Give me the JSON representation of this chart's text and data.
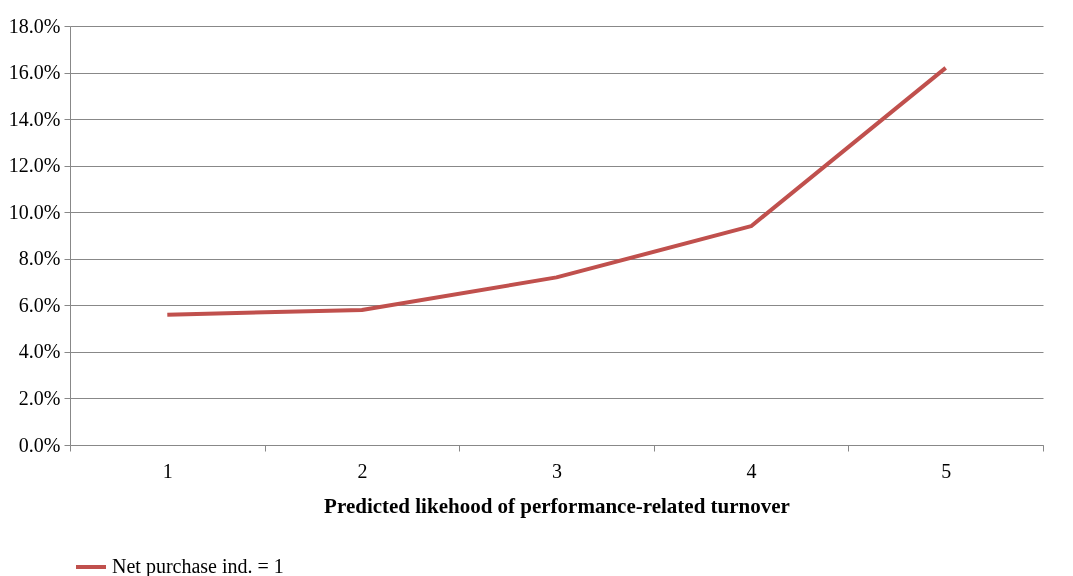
{
  "chart_data": {
    "type": "line",
    "xlabel": "Predicted likehood of performance-related turnover",
    "categories": [
      "1",
      "2",
      "3",
      "4",
      "5"
    ],
    "series": [
      {
        "name": "Net purchase ind. = 1",
        "color": "#c0504d",
        "values": [
          5.6,
          5.8,
          7.2,
          9.4,
          16.2
        ]
      }
    ],
    "ylim": [
      0,
      18
    ],
    "yticks": [
      {
        "value": 0,
        "label": "0.0%"
      },
      {
        "value": 2,
        "label": "2.0%"
      },
      {
        "value": 4,
        "label": "4.0%"
      },
      {
        "value": 6,
        "label": "6.0%"
      },
      {
        "value": 8,
        "label": "8.0%"
      },
      {
        "value": 10,
        "label": "10.0%"
      },
      {
        "value": 12,
        "label": "12.0%"
      },
      {
        "value": 14,
        "label": "14.0%"
      },
      {
        "value": 16,
        "label": "16.0%"
      },
      {
        "value": 18,
        "label": "18.0%"
      }
    ],
    "grid": "y",
    "legend": "bottom",
    "line_style": "solid",
    "marker": "none"
  }
}
